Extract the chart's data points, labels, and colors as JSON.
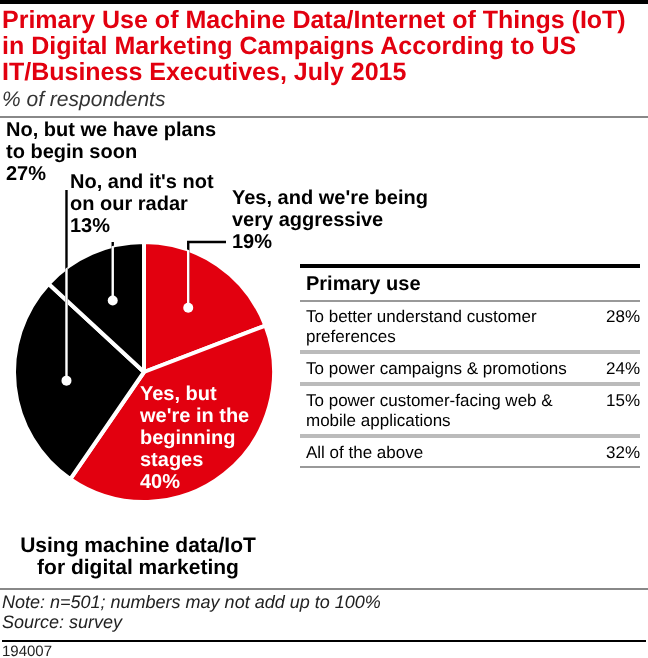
{
  "chart_data": [
    {
      "type": "pie",
      "title": "Primary Use of Machine Data/Internet of Things (IoT) in Digital Marketing Campaigns According to US IT/Business Executives, July 2015",
      "subtitle": "% of respondents",
      "xlabel": "Using machine data/IoT for digital marketing",
      "categories": [
        "Yes, and we're being very aggressive",
        "Yes, but we're in the beginning stages",
        "No, but we have plans to begin soon",
        "No, and it's not on our radar"
      ],
      "values": [
        19,
        40,
        27,
        13
      ],
      "value_labels": [
        "19%",
        "40%",
        "27%",
        "13%"
      ],
      "colors": [
        "#e2000f",
        "#e2000f",
        "#000000",
        "#000000"
      ],
      "annotations": [
        "Note: n=501; numbers may not add up to 100%",
        "Source: survey",
        "194007"
      ]
    },
    {
      "type": "other",
      "title": "Primary use",
      "categories": [
        "To better understand customer preferences",
        "To power campaigns & promotions",
        "To power customer-facing web & mobile applications",
        "All of the above"
      ],
      "values": [
        28,
        24,
        15,
        32
      ],
      "value_labels": [
        "28%",
        "24%",
        "15%",
        "32%"
      ]
    }
  ]
}
